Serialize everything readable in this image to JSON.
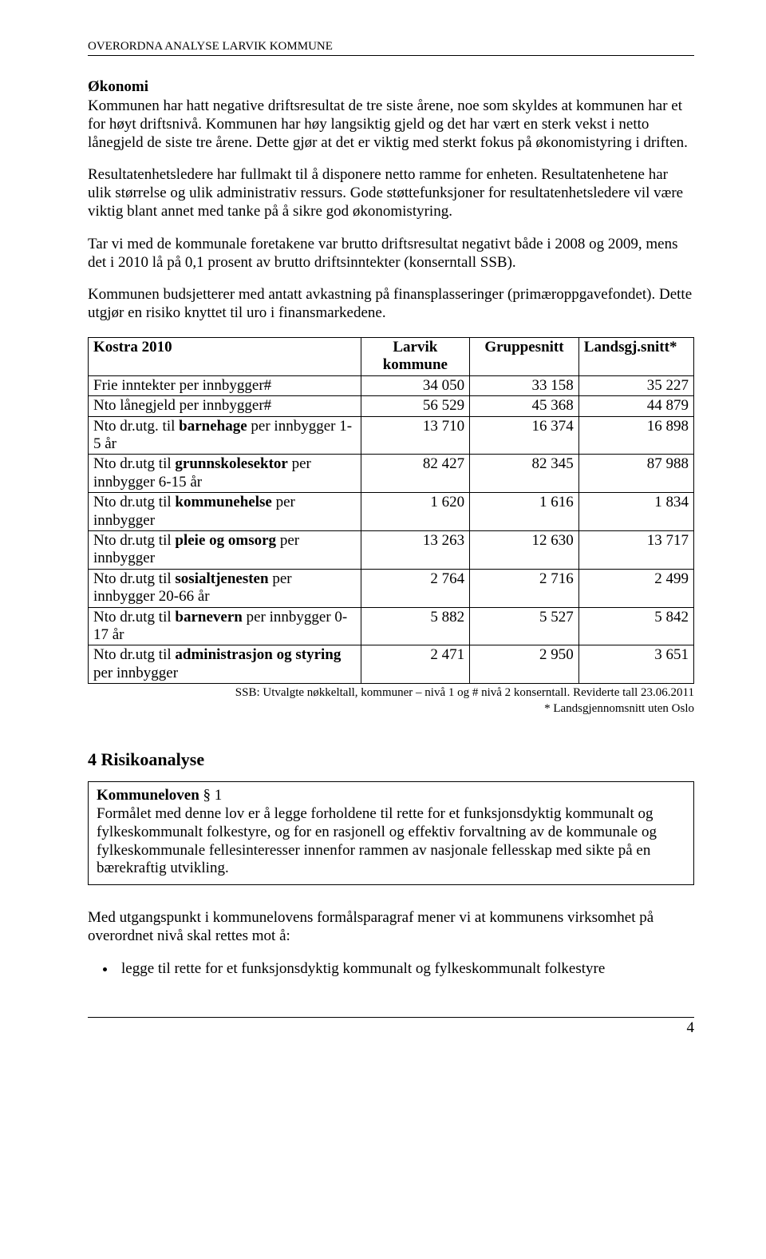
{
  "header": {
    "text_upper": "OVERORDNA ANALYSE ",
    "text_sc": "LARVIK KOMMUNE"
  },
  "okonomi": {
    "title": "Økonomi",
    "p1": "Kommunen har hatt negative driftsresultat de tre siste årene, noe som skyldes at kommunen har et for høyt driftsnivå. Kommunen har høy langsiktig gjeld og det har vært en sterk vekst i netto lånegjeld de siste tre årene. Dette gjør at det er viktig med sterkt fokus på økonomistyring i driften.",
    "p2": "Resultatenhetsledere har fullmakt til å disponere netto ramme for enheten. Resultatenhetene har ulik størrelse og ulik administrativ ressurs. Gode støttefunksjoner for resultatenhetsledere vil være viktig blant annet med tanke på å sikre god økonomistyring.",
    "p3": "Tar vi med de kommunale foretakene var brutto driftsresultat negativt både i 2008 og 2009, mens det i 2010 lå på 0,1 prosent av brutto driftsinntekter (konserntall SSB).",
    "p4": "Kommunen budsjetterer med antatt avkastning på finansplasseringer (primæroppgavefondet). Dette utgjør en risiko knyttet til uro i finansmarkedene."
  },
  "table": {
    "head": {
      "c1": "Kostra 2010",
      "c2a": "Larvik",
      "c2b": "kommune",
      "c3": "Gruppesnitt",
      "c4": "Landsgj.snitt*"
    },
    "rows": [
      {
        "label_html": "Frie inntekter per innbygger#",
        "v1": "34 050",
        "v2": "33 158",
        "v3": "35 227"
      },
      {
        "label_html": "Nto lånegjeld per innbygger#",
        "v1": "56 529",
        "v2": "45 368",
        "v3": "44 879"
      },
      {
        "label_html": "Nto dr.utg. til <b>barnehage</b> per innbygger 1-5 år",
        "v1": "13 710",
        "v2": "16 374",
        "v3": "16 898"
      },
      {
        "label_html": "Nto dr.utg til <b>grunnskolesektor</b> per innbygger 6-15 år",
        "v1": "82 427",
        "v2": "82 345",
        "v3": "87 988"
      },
      {
        "label_html": "Nto dr.utg til <b>kommunehelse</b> per innbygger",
        "v1": "1 620",
        "v2": "1 616",
        "v3": "1 834"
      },
      {
        "label_html": "Nto dr.utg til <b>pleie og omsorg</b> per innbygger",
        "v1": "13 263",
        "v2": "12 630",
        "v3": "13 717"
      },
      {
        "label_html": "Nto dr.utg til <b>sosialtjenesten</b> per innbygger 20-66 år",
        "v1": "2 764",
        "v2": "2 716",
        "v3": "2 499"
      },
      {
        "label_html": "Nto dr.utg til <b>barnevern</b> per innbygger 0-17 år",
        "v1": "5 882",
        "v2": "5 527",
        "v3": "5 842"
      },
      {
        "label_html": "Nto dr.utg til <b>administrasjon og styring</b> per innbygger",
        "v1": "2 471",
        "v2": "2 950",
        "v3": "3 651"
      }
    ],
    "note1": "SSB: Utvalgte nøkkeltall, kommuner – nivå 1 og # nivå 2 konserntall. Reviderte tall 23.06.2011",
    "note2": "* Landsgjennomsnitt uten Oslo"
  },
  "risk": {
    "heading": "4   Risikoanalyse",
    "box_title": "Kommuneloven",
    "box_para": " § 1",
    "box_body": "Formålet med denne lov er å legge forholdene til rette for et funksjonsdyktig kommunalt og fylkeskommunalt folkestyre, og for en rasjonell og effektiv forvaltning av de kommunale og fylkeskommunale fellesinteresser innenfor rammen av nasjonale fellesskap med sikte på en bærekraftig utvikling.",
    "p_after": "Med utgangspunkt i kommunelovens formålsparagraf mener vi at kommunens virksomhet på overordnet nivå skal rettes mot å:",
    "bullet": "legge til rette for et funksjonsdyktig kommunalt og fylkeskommunalt folkestyre"
  },
  "footer": {
    "pagenum": "4"
  }
}
